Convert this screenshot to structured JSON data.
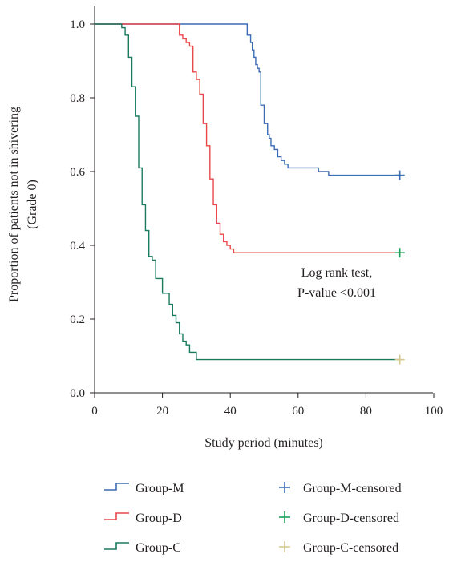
{
  "chart_data": {
    "type": "line",
    "subtype": "kaplan-meier step",
    "xlabel": "Study period (minutes)",
    "ylabel": "Proportion of patients not in shivering",
    "ylabel_line2": "(Grade 0)",
    "xlim": [
      0,
      100
    ],
    "ylim": [
      0,
      1.0
    ],
    "x_ticks": [
      0,
      20,
      40,
      60,
      80,
      100
    ],
    "x_tick_labels": [
      "0",
      "20",
      "40",
      "60",
      "80",
      "100"
    ],
    "y_ticks": [
      0.0,
      0.2,
      0.4,
      0.6,
      0.8,
      1.0
    ],
    "y_tick_labels": [
      "0.0",
      "0.2",
      "0.4",
      "0.6",
      "0.8",
      "1.0"
    ],
    "grid": false,
    "legend_position": "bottom",
    "annotation": [
      "Log rank test,",
      "P-value <0.001"
    ],
    "series": [
      {
        "name": "Group-M",
        "color": "#3b6cb4",
        "x": [
          0,
          45,
          46,
          46.5,
          47,
          47.5,
          48,
          48.5,
          49,
          50,
          51,
          51.5,
          52,
          53,
          54,
          55,
          56,
          57,
          60,
          66,
          69,
          90
        ],
        "y": [
          1.0,
          0.97,
          0.95,
          0.93,
          0.91,
          0.89,
          0.88,
          0.87,
          0.78,
          0.73,
          0.7,
          0.69,
          0.67,
          0.66,
          0.64,
          0.63,
          0.62,
          0.61,
          0.61,
          0.6,
          0.59,
          0.59
        ]
      },
      {
        "name": "Group-D",
        "color": "#e8474c",
        "x": [
          0,
          25,
          26,
          27,
          28,
          29,
          30,
          31,
          32,
          33,
          34,
          35,
          36,
          37,
          38,
          39,
          40,
          41,
          90
        ],
        "y": [
          1.0,
          0.97,
          0.96,
          0.95,
          0.94,
          0.87,
          0.85,
          0.81,
          0.73,
          0.67,
          0.58,
          0.51,
          0.46,
          0.43,
          0.41,
          0.4,
          0.39,
          0.38,
          0.38
        ]
      },
      {
        "name": "Group-C",
        "color": "#1a7a5e",
        "x": [
          0,
          8,
          9,
          10,
          11,
          12,
          13,
          14,
          15,
          16,
          17,
          18,
          20,
          22,
          23,
          24,
          25,
          26,
          27,
          28,
          30,
          90
        ],
        "y": [
          1.0,
          0.99,
          0.97,
          0.91,
          0.83,
          0.75,
          0.61,
          0.51,
          0.44,
          0.37,
          0.36,
          0.31,
          0.27,
          0.24,
          0.21,
          0.19,
          0.16,
          0.14,
          0.13,
          0.11,
          0.09,
          0.09
        ]
      }
    ],
    "censored": [
      {
        "name": "Group-M-censored",
        "color": "#3b6cb4",
        "x": 90,
        "y": 0.59
      },
      {
        "name": "Group-D-censored",
        "color": "#19a15a",
        "x": 90,
        "y": 0.38
      },
      {
        "name": "Group-C-censored",
        "color": "#d6c98f",
        "x": 90,
        "y": 0.09
      }
    ]
  }
}
